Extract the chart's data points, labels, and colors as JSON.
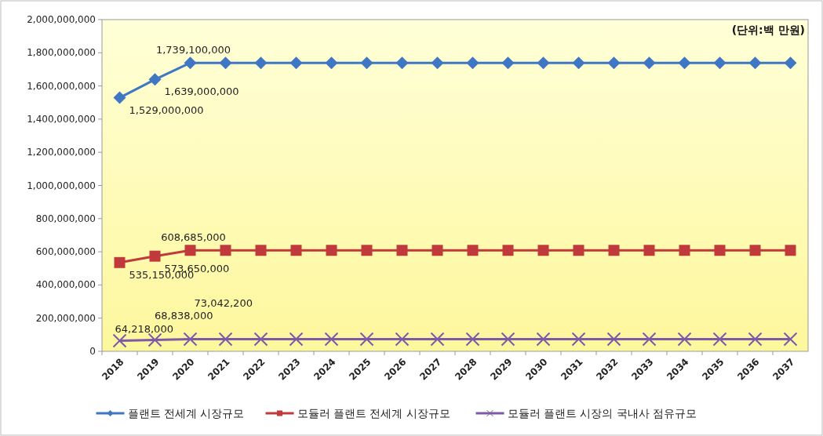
{
  "chart_data": {
    "type": "line",
    "annotations": [
      "(단위:백 만원)"
    ],
    "categories": [
      "2018",
      "2019",
      "2020",
      "2021",
      "2022",
      "2023",
      "2024",
      "2025",
      "2026",
      "2027",
      "2028",
      "2029",
      "2030",
      "2031",
      "2032",
      "2033",
      "2034",
      "2035",
      "2036",
      "2037"
    ],
    "ylim": [
      0,
      2000000000
    ],
    "yticks": [
      {
        "value": 0,
        "label": "0"
      },
      {
        "value": 200000000,
        "label": "200,000,000"
      },
      {
        "value": 400000000,
        "label": "400,000,000"
      },
      {
        "value": 600000000,
        "label": "600,000,000"
      },
      {
        "value": 800000000,
        "label": "800,000,000"
      },
      {
        "value": 1000000000,
        "label": "1,000,000,000"
      },
      {
        "value": 1200000000,
        "label": "1,200,000,000"
      },
      {
        "value": 1400000000,
        "label": "1,400,000,000"
      },
      {
        "value": 1600000000,
        "label": "1,600,000,000"
      },
      {
        "value": 1800000000,
        "label": "1,800,000,000"
      },
      {
        "value": 2000000000,
        "label": "2,000,000,000"
      }
    ],
    "legend": "bottom",
    "series": [
      {
        "name": "플랜트 전세계 시장규모",
        "color": "#3f77c4",
        "marker": "diamond",
        "values": [
          1529000000,
          1639000000,
          1739100000,
          1739100000,
          1739100000,
          1739100000,
          1739100000,
          1739100000,
          1739100000,
          1739100000,
          1739100000,
          1739100000,
          1739100000,
          1739100000,
          1739100000,
          1739100000,
          1739100000,
          1739100000,
          1739100000,
          1739100000
        ],
        "value_labels": [
          "1,529,000,000",
          "1,639,000,000",
          "1,739,100,000",
          null,
          null,
          null,
          null,
          null,
          null,
          null,
          null,
          null,
          null,
          null,
          null,
          null,
          null,
          null,
          null,
          null
        ]
      },
      {
        "name": "모듈러 플랜트 전세계 시장규모",
        "color": "#c0393b",
        "marker": "square",
        "values": [
          535150000,
          573650000,
          608685000,
          608685000,
          608685000,
          608685000,
          608685000,
          608685000,
          608685000,
          608685000,
          608685000,
          608685000,
          608685000,
          608685000,
          608685000,
          608685000,
          608685000,
          608685000,
          608685000,
          608685000
        ],
        "value_labels": [
          "535,150,000",
          "573,650,000",
          "608,685,000",
          null,
          null,
          null,
          null,
          null,
          null,
          null,
          null,
          null,
          null,
          null,
          null,
          null,
          null,
          null,
          null,
          null
        ]
      },
      {
        "name": "모듈러 플랜트 시장의 국내사 점유규모",
        "color": "#7d5aa8",
        "marker": "cross",
        "values": [
          64218000,
          68838000,
          73042200,
          73042200,
          73042200,
          73042200,
          73042200,
          73042200,
          73042200,
          73042200,
          73042200,
          73042200,
          73042200,
          73042200,
          73042200,
          73042200,
          73042200,
          73042200,
          73042200,
          73042200
        ],
        "value_labels": [
          "64,218,000",
          "68,838,000",
          "73,042,200",
          null,
          null,
          null,
          null,
          null,
          null,
          null,
          null,
          null,
          null,
          null,
          null,
          null,
          null,
          null,
          null,
          null
        ]
      }
    ]
  }
}
